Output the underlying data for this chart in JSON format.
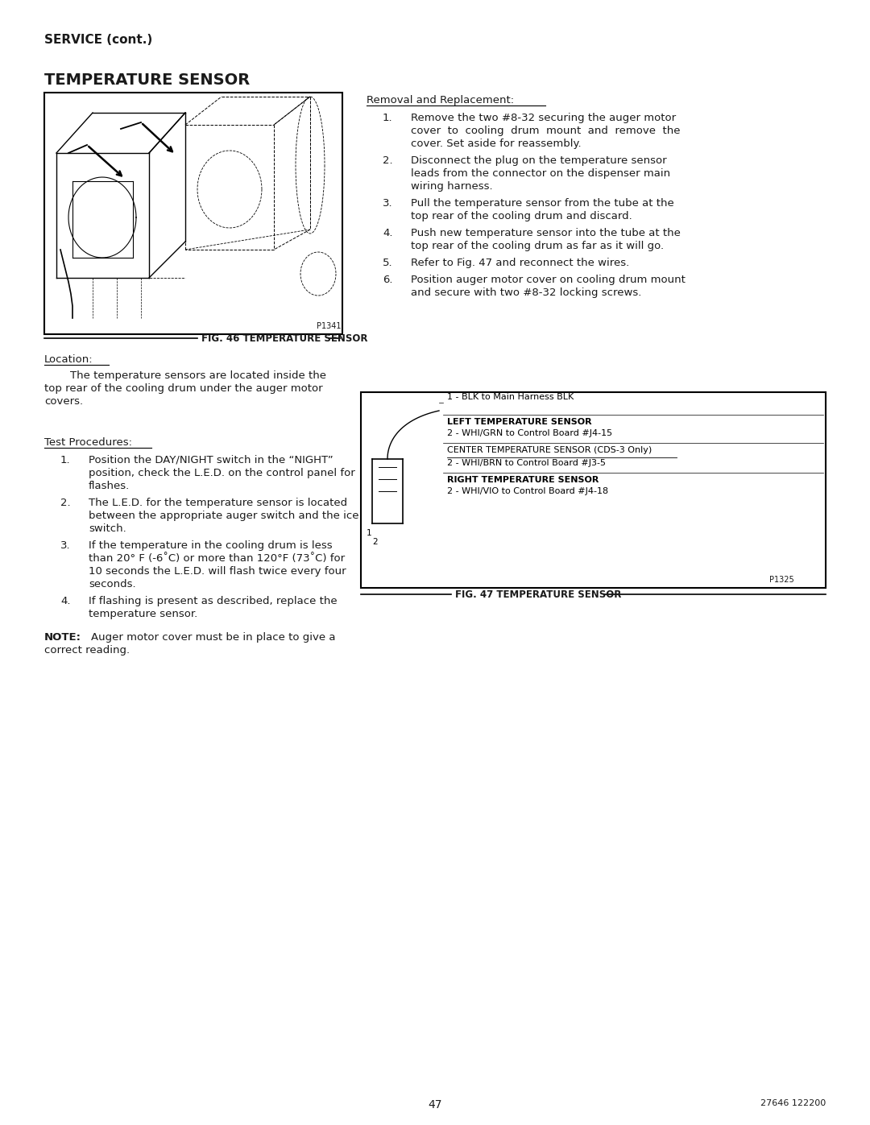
{
  "page_width": 10.8,
  "page_height": 13.97,
  "bg_color": "#ffffff",
  "text_color": "#1a1a1a",
  "header_bold": "SERVICE (cont.)",
  "section_title": "TEMPERATURE SENSOR",
  "fig46_label": "FIG. 46 TEMPERATURE SENSOR",
  "fig46_code": "P1341",
  "location_heading": "Location:",
  "location_text_line1": "The temperature sensors are located inside the",
  "location_text_line2": "top rear of the cooling drum under the auger motor",
  "location_text_line3": "covers.",
  "test_heading": "Test Procedures:",
  "test_items": [
    [
      "Position the DAY/NIGHT switch in the “NIGHT”",
      "position, check the L.E.D. on the control panel for",
      "flashes."
    ],
    [
      "The L.E.D. for the temperature sensor is located",
      "between the appropriate auger switch and the ice",
      "switch."
    ],
    [
      "If the temperature in the cooling drum is less",
      "than 20° F (-6˚C) or more than 120°F (73˚C) for",
      "10 seconds the L.E.D. will flash twice every four",
      "seconds."
    ],
    [
      "If flashing is present as described, replace the",
      "temperature sensor."
    ]
  ],
  "note_bold": "NOTE:",
  "note_text_line1": "Auger motor cover must be in place to give a",
  "note_text_line2": "correct reading.",
  "removal_heading": "Removal and Replacement:",
  "removal_items": [
    [
      "Remove the two #8-32 securing the auger motor",
      "cover  to  cooling  drum  mount  and  remove  the",
      "cover. Set aside for reassembly."
    ],
    [
      "Disconnect the plug on the temperature sensor",
      "leads from the connector on the dispenser main",
      "wiring harness."
    ],
    [
      "Pull the temperature sensor from the tube at the",
      "top rear of the cooling drum and discard."
    ],
    [
      "Push new temperature sensor into the tube at the",
      "top rear of the cooling drum as far as it will go."
    ],
    [
      "Refer to Fig. 47 and reconnect the wires."
    ],
    [
      "Position auger motor cover on cooling drum mount",
      "and secure with two #8-32 locking screws."
    ]
  ],
  "fig47_label": "FIG. 47 TEMPERATURE SENSOR",
  "fig47_code": "P1325",
  "sensor_line1": "1 - BLK to Main Harness BLK",
  "sensor_label_left": "LEFT TEMPERATURE SENSOR",
  "sensor_line2": "2 - WHI/GRN to Control Board #J4-15",
  "sensor_label_center": "CENTER TEMPERATURE SENSOR (CDS-3 Only)",
  "sensor_line3": "2 - WHI/BRN to Control Board #J3-5",
  "sensor_label_right": "RIGHT TEMPERATURE SENSOR",
  "sensor_line4": "2 - WHI/VIO to Control Board #J4-18",
  "page_number": "47",
  "doc_number": "27646 122200"
}
